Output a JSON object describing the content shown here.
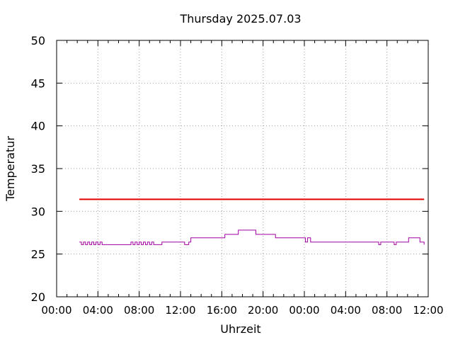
{
  "chart_data": {
    "type": "line",
    "title": "Thursday 2025.07.03",
    "xlabel": "Uhrzeit",
    "ylabel": "Temperatur",
    "ylim": [
      20,
      50
    ],
    "yticks": [
      "20",
      "25",
      "30",
      "35",
      "40",
      "45",
      "50"
    ],
    "xlim_hours": [
      0,
      36
    ],
    "xticks": [
      "00:00",
      "04:00",
      "08:00",
      "12:00",
      "16:00",
      "20:00",
      "00:00",
      "04:00",
      "08:00",
      "12:00"
    ],
    "grid": true,
    "legend": "none",
    "series": [
      {
        "color": "#e00000",
        "x": [
          2.2,
          35.6
        ],
        "y": [
          31.4,
          31.4
        ]
      },
      {
        "color": "#a000a0",
        "x": [
          2.2,
          2.4,
          2.6,
          2.8,
          3.0,
          3.2,
          3.4,
          3.6,
          3.8,
          4.0,
          4.2,
          4.4,
          7.0,
          7.2,
          7.4,
          7.6,
          7.8,
          8.0,
          8.2,
          8.4,
          8.6,
          8.8,
          9.0,
          9.2,
          9.4,
          10.0,
          10.2,
          12.2,
          12.4,
          12.8,
          13.0,
          16.0,
          16.3,
          17.4,
          17.6,
          19.1,
          19.3,
          21.0,
          21.2,
          23.9,
          24.1,
          24.3,
          24.6,
          24.8,
          31.0,
          31.2,
          31.4,
          31.6,
          32.5,
          32.7,
          32.9,
          33.8,
          34.1,
          35.0,
          35.2,
          35.4,
          35.6
        ],
        "y": [
          26.4,
          26.1,
          26.4,
          26.1,
          26.4,
          26.1,
          26.4,
          26.1,
          26.4,
          26.1,
          26.4,
          26.1,
          26.1,
          26.4,
          26.1,
          26.4,
          26.1,
          26.4,
          26.1,
          26.4,
          26.1,
          26.4,
          26.1,
          26.4,
          26.1,
          26.1,
          26.4,
          26.4,
          26.1,
          26.4,
          26.9,
          26.9,
          27.3,
          27.3,
          27.8,
          27.8,
          27.3,
          27.3,
          26.9,
          26.9,
          26.4,
          26.9,
          26.4,
          26.4,
          26.4,
          26.1,
          26.4,
          26.4,
          26.4,
          26.1,
          26.4,
          26.4,
          26.9,
          26.9,
          26.4,
          26.4,
          26.1
        ]
      }
    ]
  }
}
